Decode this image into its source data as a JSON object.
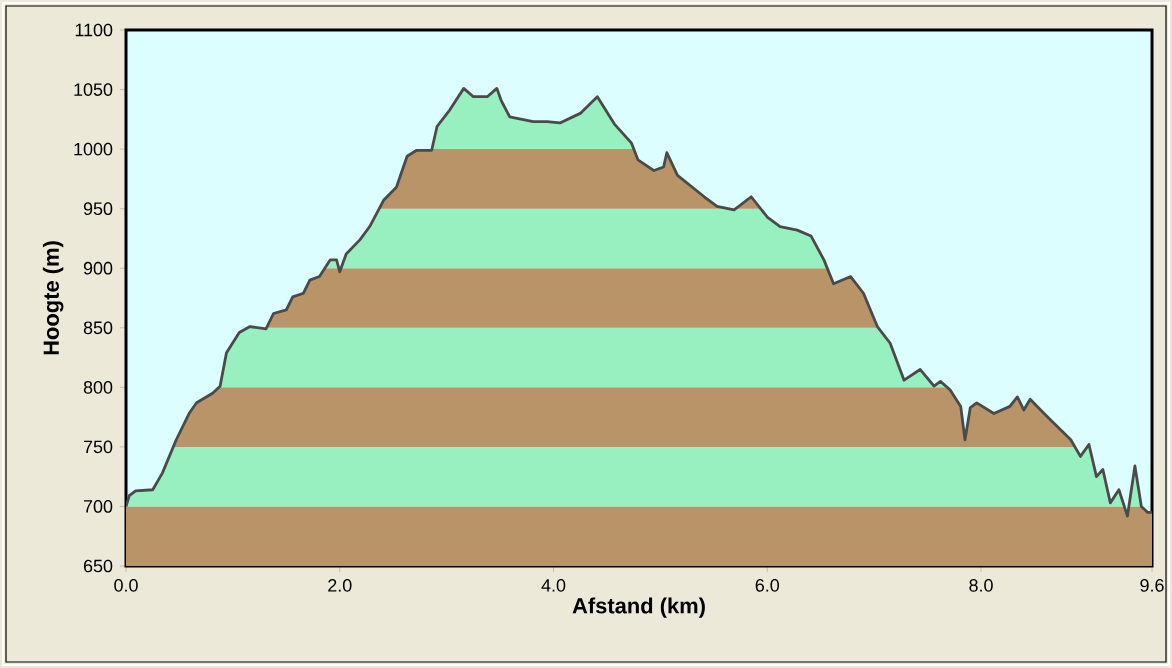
{
  "chart_data": {
    "type": "line",
    "xlabel": "Afstand   (km)",
    "ylabel": "Hoogte (m)",
    "x": [
      0,
      0.03,
      0.09,
      0.25,
      0.34,
      0.47,
      0.59,
      0.66,
      0.81,
      0.88,
      0.94,
      1.06,
      1.16,
      1.31,
      1.38,
      1.5,
      1.56,
      1.66,
      1.72,
      1.81,
      1.91,
      1.97,
      2.0,
      2.06,
      2.19,
      2.28,
      2.41,
      2.53,
      2.63,
      2.72,
      2.86,
      2.91,
      3.03,
      3.16,
      3.25,
      3.38,
      3.47,
      3.51,
      3.59,
      3.81,
      3.94,
      4.06,
      4.25,
      4.41,
      4.57,
      4.73,
      4.79,
      4.94,
      5.03,
      5.06,
      5.16,
      5.41,
      5.53,
      5.69,
      5.85,
      6.0,
      6.12,
      6.28,
      6.41,
      6.53,
      6.62,
      6.78,
      6.9,
      7.03,
      7.15,
      7.28,
      7.43,
      7.56,
      7.62,
      7.71,
      7.81,
      7.85,
      7.9,
      7.96,
      8.12,
      8.27,
      8.34,
      8.4,
      8.46,
      8.59,
      8.68,
      8.84,
      8.93,
      9.01,
      9.08,
      9.14,
      9.21,
      9.29,
      9.37,
      9.44,
      9.5,
      9.56,
      9.6
    ],
    "series": [
      {
        "color": "#4a4a4a",
        "values": [
          700,
          709,
          713,
          714,
          728,
          756,
          778,
          787,
          795,
          801,
          829,
          846,
          851,
          849,
          862,
          865,
          876,
          879,
          890,
          893,
          907,
          907,
          897,
          912,
          924,
          935,
          957,
          968,
          994,
          999,
          999,
          1019,
          1033,
          1051,
          1044,
          1044,
          1051,
          1041,
          1027,
          1023,
          1023,
          1022,
          1030,
          1044,
          1021,
          1005,
          991,
          982,
          985,
          997,
          978,
          960,
          952,
          949,
          960,
          943,
          935,
          932,
          927,
          907,
          887,
          893,
          879,
          851,
          837,
          806,
          815,
          801,
          805,
          798,
          784,
          756,
          783,
          787,
          778,
          784,
          792,
          781,
          790,
          778,
          770,
          756,
          742,
          752,
          725,
          731,
          703,
          714,
          692,
          734,
          700,
          695,
          695
        ]
      }
    ],
    "xlim": [
      0,
      9.6
    ],
    "ylim": [
      650,
      1100
    ],
    "xticks": [
      {
        "value": 0,
        "label": "0.0"
      },
      {
        "value": 2,
        "label": "2.0"
      },
      {
        "value": 4,
        "label": "4.0"
      },
      {
        "value": 6,
        "label": "6.0"
      },
      {
        "value": 8,
        "label": "8.0"
      },
      {
        "value": 9.6,
        "label": "9.6"
      }
    ],
    "yticks": [
      650,
      700,
      750,
      800,
      850,
      900,
      950,
      1000,
      1050,
      1100
    ],
    "bands": [
      {
        "axis": "y",
        "from": 650,
        "to": 700,
        "color": "#b89468"
      },
      {
        "axis": "y",
        "from": 700,
        "to": 750,
        "color": "#98f0c0"
      },
      {
        "axis": "y",
        "from": 750,
        "to": 800,
        "color": "#b89468"
      },
      {
        "axis": "y",
        "from": 800,
        "to": 850,
        "color": "#98f0c0"
      },
      {
        "axis": "y",
        "from": 850,
        "to": 900,
        "color": "#b89468"
      },
      {
        "axis": "y",
        "from": 900,
        "to": 950,
        "color": "#98f0c0"
      },
      {
        "axis": "y",
        "from": 950,
        "to": 1000,
        "color": "#b89468"
      },
      {
        "axis": "y",
        "from": 1000,
        "to": 1050,
        "color": "#98f0c0"
      }
    ]
  }
}
